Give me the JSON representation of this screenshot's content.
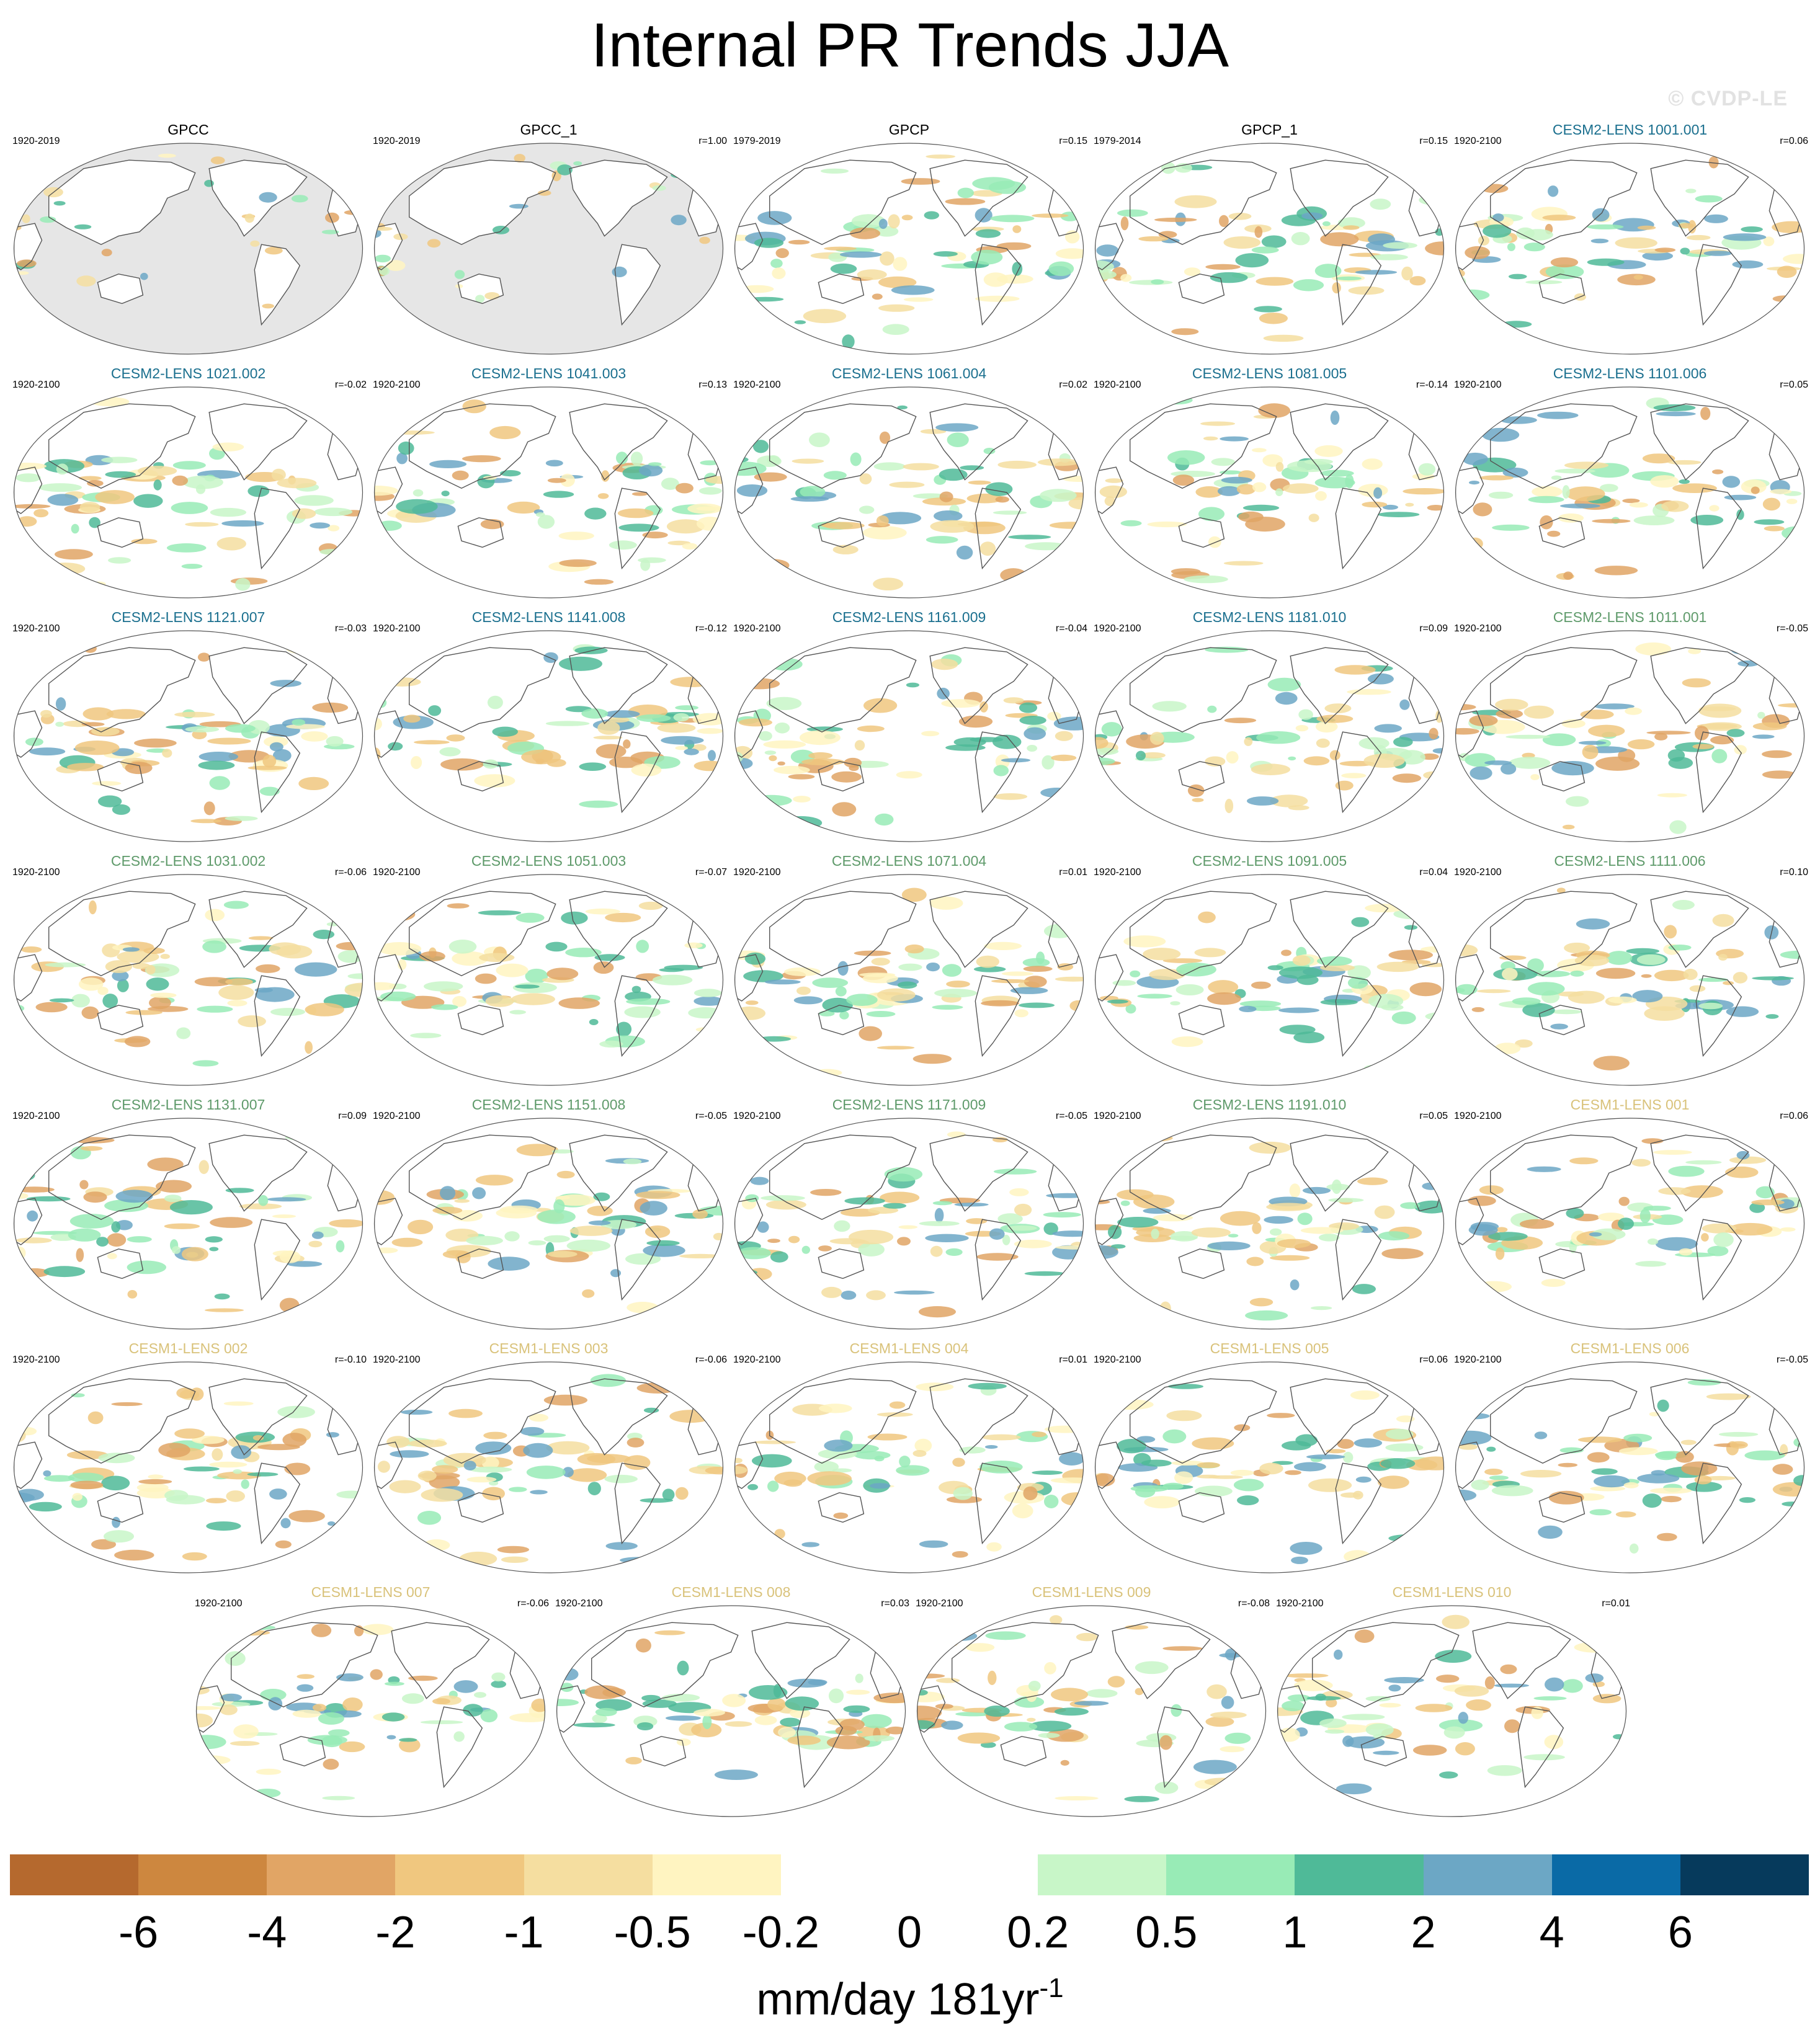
{
  "title": "Internal PR Trends JJA",
  "watermark": "© CVDP-LE",
  "colors": {
    "obs_label": "#000000",
    "cesm2_smbb": "#1a6f8e",
    "cesm2_cmip6": "#5e9a6a",
    "cesm1": "#d9c27a",
    "ocean_mask": "#e6e6e6",
    "coastline": "#555555"
  },
  "panels": [
    {
      "name": "GPCC",
      "period": "1920-2019",
      "corr": "",
      "group": "obs",
      "mask_ocean": true
    },
    {
      "name": "GPCC_1",
      "period": "1920-2019",
      "corr": "r=1.00",
      "group": "obs",
      "mask_ocean": true
    },
    {
      "name": "GPCP",
      "period": "1979-2019",
      "corr": "r=0.15",
      "group": "obs",
      "mask_ocean": false
    },
    {
      "name": "GPCP_1",
      "period": "1979-2014",
      "corr": "r=0.15",
      "group": "obs",
      "mask_ocean": false
    },
    {
      "name": "CESM2-LENS 1001.001",
      "period": "1920-2100",
      "corr": "r=0.06",
      "group": "cesm2_smbb",
      "mask_ocean": false
    },
    {
      "name": "CESM2-LENS 1021.002",
      "period": "1920-2100",
      "corr": "r=-0.02",
      "group": "cesm2_smbb",
      "mask_ocean": false
    },
    {
      "name": "CESM2-LENS 1041.003",
      "period": "1920-2100",
      "corr": "r=0.13",
      "group": "cesm2_smbb",
      "mask_ocean": false
    },
    {
      "name": "CESM2-LENS 1061.004",
      "period": "1920-2100",
      "corr": "r=0.02",
      "group": "cesm2_smbb",
      "mask_ocean": false
    },
    {
      "name": "CESM2-LENS 1081.005",
      "period": "1920-2100",
      "corr": "r=-0.14",
      "group": "cesm2_smbb",
      "mask_ocean": false
    },
    {
      "name": "CESM2-LENS 1101.006",
      "period": "1920-2100",
      "corr": "r=0.05",
      "group": "cesm2_smbb",
      "mask_ocean": false
    },
    {
      "name": "CESM2-LENS 1121.007",
      "period": "1920-2100",
      "corr": "r=-0.03",
      "group": "cesm2_smbb",
      "mask_ocean": false
    },
    {
      "name": "CESM2-LENS 1141.008",
      "period": "1920-2100",
      "corr": "r=-0.12",
      "group": "cesm2_smbb",
      "mask_ocean": false
    },
    {
      "name": "CESM2-LENS 1161.009",
      "period": "1920-2100",
      "corr": "r=-0.04",
      "group": "cesm2_smbb",
      "mask_ocean": false
    },
    {
      "name": "CESM2-LENS 1181.010",
      "period": "1920-2100",
      "corr": "r=0.09",
      "group": "cesm2_smbb",
      "mask_ocean": false
    },
    {
      "name": "CESM2-LENS 1011.001",
      "period": "1920-2100",
      "corr": "r=-0.05",
      "group": "cesm2_cmip6",
      "mask_ocean": false
    },
    {
      "name": "CESM2-LENS 1031.002",
      "period": "1920-2100",
      "corr": "r=-0.06",
      "group": "cesm2_cmip6",
      "mask_ocean": false
    },
    {
      "name": "CESM2-LENS 1051.003",
      "period": "1920-2100",
      "corr": "r=-0.07",
      "group": "cesm2_cmip6",
      "mask_ocean": false
    },
    {
      "name": "CESM2-LENS 1071.004",
      "period": "1920-2100",
      "corr": "r=0.01",
      "group": "cesm2_cmip6",
      "mask_ocean": false
    },
    {
      "name": "CESM2-LENS 1091.005",
      "period": "1920-2100",
      "corr": "r=0.04",
      "group": "cesm2_cmip6",
      "mask_ocean": false
    },
    {
      "name": "CESM2-LENS 1111.006",
      "period": "1920-2100",
      "corr": "r=0.10",
      "group": "cesm2_cmip6",
      "mask_ocean": false
    },
    {
      "name": "CESM2-LENS 1131.007",
      "period": "1920-2100",
      "corr": "r=0.09",
      "group": "cesm2_cmip6",
      "mask_ocean": false
    },
    {
      "name": "CESM2-LENS 1151.008",
      "period": "1920-2100",
      "corr": "r=-0.05",
      "group": "cesm2_cmip6",
      "mask_ocean": false
    },
    {
      "name": "CESM2-LENS 1171.009",
      "period": "1920-2100",
      "corr": "r=-0.05",
      "group": "cesm2_cmip6",
      "mask_ocean": false
    },
    {
      "name": "CESM2-LENS 1191.010",
      "period": "1920-2100",
      "corr": "r=0.05",
      "group": "cesm2_cmip6",
      "mask_ocean": false
    },
    {
      "name": "CESM1-LENS 001",
      "period": "1920-2100",
      "corr": "r=0.06",
      "group": "cesm1",
      "mask_ocean": false
    },
    {
      "name": "CESM1-LENS 002",
      "period": "1920-2100",
      "corr": "r=-0.10",
      "group": "cesm1",
      "mask_ocean": false
    },
    {
      "name": "CESM1-LENS 003",
      "period": "1920-2100",
      "corr": "r=-0.06",
      "group": "cesm1",
      "mask_ocean": false
    },
    {
      "name": "CESM1-LENS 004",
      "period": "1920-2100",
      "corr": "r=0.01",
      "group": "cesm1",
      "mask_ocean": false
    },
    {
      "name": "CESM1-LENS 005",
      "period": "1920-2100",
      "corr": "r=0.06",
      "group": "cesm1",
      "mask_ocean": false
    },
    {
      "name": "CESM1-LENS 006",
      "period": "1920-2100",
      "corr": "r=-0.05",
      "group": "cesm1",
      "mask_ocean": false
    },
    {
      "name": "CESM1-LENS 007",
      "period": "1920-2100",
      "corr": "r=-0.06",
      "group": "cesm1",
      "mask_ocean": false
    },
    {
      "name": "CESM1-LENS 008",
      "period": "1920-2100",
      "corr": "r=0.03",
      "group": "cesm1",
      "mask_ocean": false
    },
    {
      "name": "CESM1-LENS 009",
      "period": "1920-2100",
      "corr": "r=-0.08",
      "group": "cesm1",
      "mask_ocean": false
    },
    {
      "name": "CESM1-LENS 010",
      "period": "1920-2100",
      "corr": "r=0.01",
      "group": "cesm1",
      "mask_ocean": false
    }
  ],
  "colorbar": {
    "colors": [
      "#b5692e",
      "#cd873f",
      "#e1a565",
      "#f0c77f",
      "#f5dea0",
      "#fff4c1",
      "#ffffff",
      "#ffffff",
      "#c8f6c8",
      "#98ebb6",
      "#4fba98",
      "#6ca7c5",
      "#0a6aa6",
      "#063a5c"
    ],
    "labels": [
      "-6",
      "-4",
      "-2",
      "-1",
      "-0.5",
      "-0.2",
      "0",
      "0.2",
      "0.5",
      "1",
      "2",
      "4",
      "6"
    ],
    "units_main": "mm/day 181yr",
    "units_sup": "-1"
  }
}
